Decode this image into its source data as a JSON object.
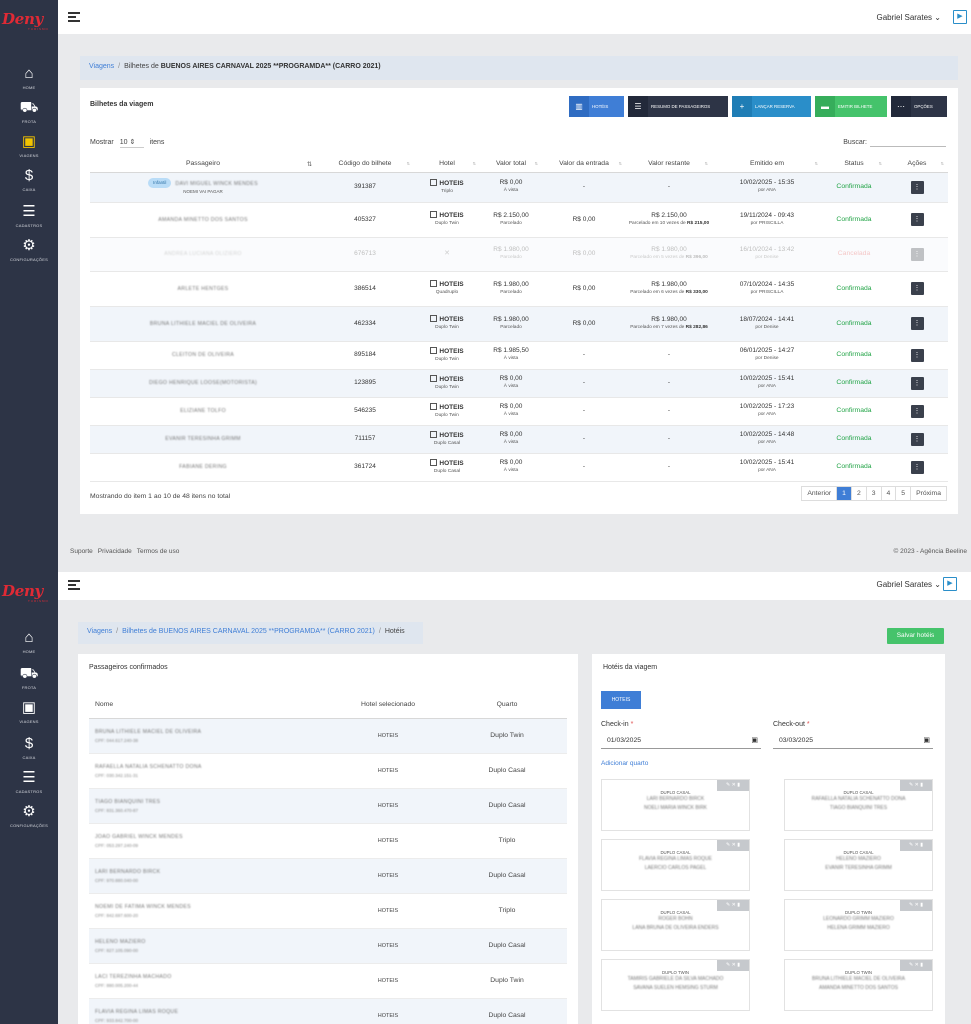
{
  "app": {
    "logo_text": "Deny",
    "logo_sub": "TURISMO",
    "user_name": "Gabriel Sarates",
    "play_icon": "play-icon"
  },
  "sidebar": {
    "items": [
      {
        "label": "HOME",
        "icon": "home-icon"
      },
      {
        "label": "FROTA",
        "icon": "bus-icon"
      },
      {
        "label": "VIAGENS",
        "icon": "luggage-icon"
      },
      {
        "label": "CAIXA",
        "icon": "dollar-icon"
      },
      {
        "label": "CADASTROS",
        "icon": "list-icon"
      },
      {
        "label": "CONFIGURAÇÕES",
        "icon": "gear-icon"
      }
    ]
  },
  "page1": {
    "breadcrumb": {
      "link": "Viagens",
      "prefix": "Bilhetes de",
      "trip": "BUENOS AIRES CARNAVAL 2025 **PROGRAMDA** (CARRO 2021)"
    },
    "card_title": "Bilhetes da viagem",
    "buttons": {
      "hoteis": "HOTÉIS",
      "resumo": "RESUMO DE PASSAGEIROS",
      "lancar": "LANÇAR RESERVA",
      "emitir": "EMITIR BILHETE",
      "opcoes": "OPÇÕES"
    },
    "show_prefix": "Mostrar",
    "show_value": "10",
    "show_suffix": "itens",
    "search_label": "Buscar:",
    "columns": [
      "Passageiro",
      "Código do bilhete",
      "Hotel",
      "Valor total",
      "Valor da entrada",
      "Valor restante",
      "Emitido em",
      "Status",
      "Ações"
    ],
    "rows": [
      {
        "badge": "Infantil",
        "name": "DAVI MIGUEL WINCK MENDES",
        "note": "NOEMI VAI PAGAR",
        "code": "391387",
        "hotel": "HOTEIS",
        "room": "Triplo",
        "total": "R$ 0,00",
        "pay": "À vista",
        "entry": "-",
        "rest": "-",
        "rest_sub": "",
        "rest_val": "",
        "date": "10/02/2025 - 15:35",
        "by": "por ANA",
        "status": "Confirmada"
      },
      {
        "badge": "",
        "name": "AMANDA MINETTO DOS SANTOS",
        "note": "",
        "code": "405327",
        "hotel": "HOTEIS",
        "room": "Duplo Twin",
        "total": "R$ 2.150,00",
        "pay": "Parcelado",
        "entry": "R$ 0,00",
        "rest": "R$ 2.150,00",
        "rest_sub": "Parcelado em 10 vezes de",
        "rest_val": "R$ 215,00",
        "date": "19/11/2024 - 09:43",
        "by": "por PRISCILLA",
        "status": "Confirmada"
      },
      {
        "badge": "",
        "name": "ANDREA LUCIANA OLIZIERO",
        "note": "",
        "code": "676713",
        "hotel": "",
        "room": "",
        "total": "R$ 1.980,00",
        "pay": "Parcelado",
        "entry": "R$ 0,00",
        "rest": "R$ 1.980,00",
        "rest_sub": "Parcelado em 5 vezes de",
        "rest_val": "R$ 396,00",
        "date": "16/10/2024 - 13:42",
        "by": "por Denise",
        "status": "Cancelada"
      },
      {
        "badge": "",
        "name": "ARLETE HENTGES",
        "note": "",
        "code": "386514",
        "hotel": "HOTEIS",
        "room": "Quadruplo",
        "total": "R$ 1.980,00",
        "pay": "Parcelado",
        "entry": "R$ 0,00",
        "rest": "R$ 1.980,00",
        "rest_sub": "Parcelado em 6 vezes de",
        "rest_val": "R$ 330,00",
        "date": "07/10/2024 - 14:35",
        "by": "por PRISCILLA",
        "status": "Confirmada"
      },
      {
        "badge": "",
        "name": "BRUNA LITHIELE MACIEL DE OLIVEIRA",
        "note": "",
        "code": "462334",
        "hotel": "HOTEIS",
        "room": "Duplo Twin",
        "total": "R$ 1.980,00",
        "pay": "Parcelado",
        "entry": "R$ 0,00",
        "rest": "R$ 1.980,00",
        "rest_sub": "Parcelado em 7 vezes de",
        "rest_val": "R$ 282,86",
        "date": "18/07/2024 - 14:41",
        "by": "por Denise",
        "status": "Confirmada"
      },
      {
        "badge": "",
        "name": "CLEITON DE OLIVEIRA",
        "note": "",
        "code": "895184",
        "hotel": "HOTEIS",
        "room": "Duplo Twin",
        "total": "R$ 1.985,50",
        "pay": "À vista",
        "entry": "-",
        "rest": "-",
        "rest_sub": "",
        "rest_val": "",
        "date": "06/01/2025 - 14:27",
        "by": "por Denise",
        "status": "Confirmada"
      },
      {
        "badge": "",
        "name": "DIEGO HENRIQUE LOOSE(MOTORISTA)",
        "note": "",
        "code": "123895",
        "hotel": "HOTEIS",
        "room": "Duplo Twin",
        "total": "R$ 0,00",
        "pay": "À vista",
        "entry": "-",
        "rest": "-",
        "rest_sub": "",
        "rest_val": "",
        "date": "10/02/2025 - 15:41",
        "by": "por ANA",
        "status": "Confirmada"
      },
      {
        "badge": "",
        "name": "ELIZIANE TOLFO",
        "note": "",
        "code": "546235",
        "hotel": "HOTEIS",
        "room": "Duplo Twin",
        "total": "R$ 0,00",
        "pay": "À vista",
        "entry": "-",
        "rest": "-",
        "rest_sub": "",
        "rest_val": "",
        "date": "10/02/2025 - 17:23",
        "by": "por ANA",
        "status": "Confirmada"
      },
      {
        "badge": "",
        "name": "EVANIR TERESINHA GRIMM",
        "note": "",
        "code": "711157",
        "hotel": "HOTEIS",
        "room": "Duplo Casal",
        "total": "R$ 0,00",
        "pay": "À vista",
        "entry": "-",
        "rest": "-",
        "rest_sub": "",
        "rest_val": "",
        "date": "10/02/2025 - 14:48",
        "by": "por ANA",
        "status": "Confirmada"
      },
      {
        "badge": "",
        "name": "FABIANE DERING",
        "note": "",
        "code": "361724",
        "hotel": "HOTEIS",
        "room": "Duplo Casal",
        "total": "R$ 0,00",
        "pay": "À vista",
        "entry": "-",
        "rest": "-",
        "rest_sub": "",
        "rest_val": "",
        "date": "10/02/2025 - 15:41",
        "by": "por ANA",
        "status": "Confirmada"
      }
    ],
    "footer_info": "Mostrando do item 1 ao 10 de 48 itens no total",
    "pager": [
      "Anterior",
      "1",
      "2",
      "3",
      "4",
      "5",
      "Próxima"
    ],
    "site_footer": [
      "Suporte",
      "Privacidade",
      "Termos de uso"
    ],
    "copyright": "© 2023 - Agência Beeline"
  },
  "page2": {
    "breadcrumb": {
      "link": "Viagens",
      "link2": "Bilhetes de BUENOS AIRES CARNAVAL 2025 **PROGRAMDA** (CARRO 2021)",
      "current": "Hotéis"
    },
    "save_label": "Salvar hotéis",
    "left_title": "Passageiros confirmados",
    "columns": [
      "Nome",
      "Hotel selecionado",
      "Quarto"
    ],
    "rows": [
      {
        "name": "BRUNA LITHIELE MACIEL DE OLIVEIRA",
        "cpf": "CPF: 044.617.240-38",
        "hotel": "HOTEIS",
        "room": "Duplo Twin"
      },
      {
        "name": "RAFAELLA NATALIA SCHENATTO DONA",
        "cpf": "CPF: 030.342.151-31",
        "hotel": "HOTEIS",
        "room": "Duplo Casal"
      },
      {
        "name": "TIAGO BIANQUINI TRES",
        "cpf": "CPF: 831.360.470-87",
        "hotel": "HOTEIS",
        "room": "Duplo Casal"
      },
      {
        "name": "JOAO GABRIEL WINCK MENDES",
        "cpf": "CPF: 053.297.240-09",
        "hotel": "HOTEIS",
        "room": "Triplo"
      },
      {
        "name": "LARI BERNARDO BIRCK",
        "cpf": "CPF: 970.880.040-00",
        "hotel": "HOTEIS",
        "room": "Duplo Casal"
      },
      {
        "name": "NOEMI DE FATIMA WINCK MENDES",
        "cpf": "CPF: 842.697.600-20",
        "hotel": "HOTEIS",
        "room": "Triplo"
      },
      {
        "name": "HELENO MAZIERO",
        "cpf": "CPF: 827.105.090-00",
        "hotel": "HOTEIS",
        "room": "Duplo Casal"
      },
      {
        "name": "LACI TEREZINHA MACHADO",
        "cpf": "CPF: 880.005.200-44",
        "hotel": "HOTEIS",
        "room": "Duplo Twin"
      },
      {
        "name": "FLAVIA REGINA LIMAS ROQUE",
        "cpf": "CPF: 933.842.700-00",
        "hotel": "HOTEIS",
        "room": "Duplo Casal"
      }
    ],
    "right_title": "Hotéis da viagem",
    "hotel_chip": "HOTEIS",
    "checkin_label": "Check-in",
    "checkin_value": "01/03/2025",
    "checkout_label": "Check-out",
    "checkout_value": "03/03/2025",
    "add_room": "Adicionar quarto",
    "room_tools": "✎ ✕ ▮",
    "rooms": [
      {
        "type": "DUPLO CASAL",
        "guests": [
          "LARI BERNARDO BIRCK",
          "NOELI MARIA WINCK BIRK"
        ]
      },
      {
        "type": "DUPLO CASAL",
        "guests": [
          "RAFAELLA NATALIA SCHENATTO DONA",
          "TIAGO BIANQUINI TRES"
        ]
      },
      {
        "type": "DUPLO CASAL",
        "guests": [
          "FLAVIA REGINA LIMAS ROQUE",
          "LAERCIO CARLOS PAGEL"
        ]
      },
      {
        "type": "DUPLO CASAL",
        "guests": [
          "HELENO MAZIERO",
          "EVANIR TERESINHA GRIMM"
        ]
      },
      {
        "type": "DUPLO CASAL",
        "guests": [
          "ROGER BOHN",
          "LANA BRUNA DE OLIVEIRA ENDERS"
        ]
      },
      {
        "type": "DUPLO TWIN",
        "guests": [
          "LEONARDO GRIMM MAZIERO",
          "HELENA GRIMM MAZIERO"
        ]
      },
      {
        "type": "DUPLO TWIN",
        "guests": [
          "TAMIRIS GABRIELE DA SILVA MACHADO",
          "SAVANA SUELEN HEMSING STURM"
        ]
      },
      {
        "type": "DUPLO TWIN",
        "guests": [
          "BRUNA LITHIELE MACIEL DE OLIVEIRA",
          "AMANDA MINETTO DOS SANTOS"
        ]
      }
    ]
  },
  "colors": {
    "sidebar": "#2d3446",
    "accent_blue": "#3f7ed6",
    "success": "#22a447",
    "danger": "#e04f4f",
    "logo_red": "#e02a35"
  }
}
